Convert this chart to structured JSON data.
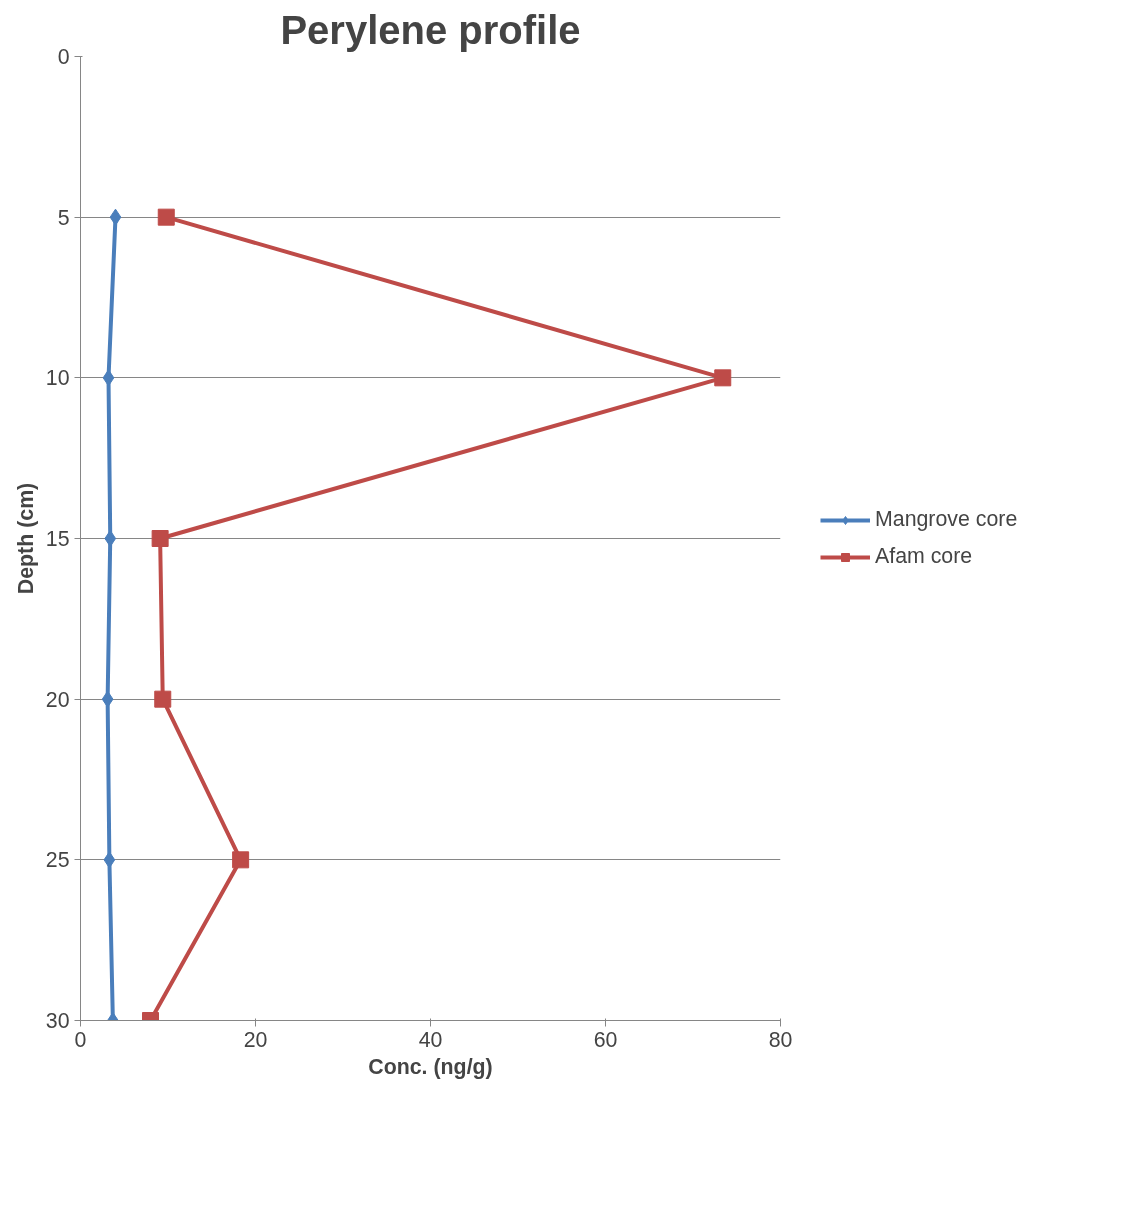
{
  "chart_data": {
    "type": "line",
    "title": "Perylene profile",
    "xlabel": "Conc. (ng/g)",
    "ylabel": "Depth (cm)",
    "xlim": [
      0,
      80
    ],
    "xticks": [
      0,
      20,
      40,
      60,
      80
    ],
    "ylim": [
      30,
      0
    ],
    "yticks": [
      0,
      5,
      10,
      15,
      20,
      25,
      30
    ],
    "grid": "y",
    "legend": "right",
    "line_style": "solid",
    "series": [
      {
        "name": "Mangrove core",
        "color": "#4a7ebb",
        "marker": "diamond",
        "x": [
          4.0,
          3.2,
          3.4,
          3.1,
          3.3,
          3.7
        ],
        "values": [
          5,
          10,
          15,
          20,
          25,
          30
        ]
      },
      {
        "name": "Afam core",
        "color": "#be4b48",
        "marker": "square",
        "x": [
          9.8,
          73.4,
          9.1,
          9.4,
          18.3,
          8.0
        ],
        "values": [
          5,
          10,
          15,
          20,
          25,
          30
        ]
      }
    ]
  }
}
